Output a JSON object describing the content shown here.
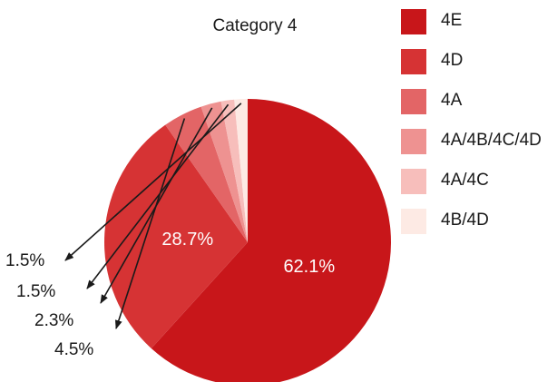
{
  "chart_data": {
    "type": "pie",
    "title": "Category 4",
    "slices": [
      {
        "label": "4E",
        "value": 62.1,
        "value_label": "62.1%",
        "color": "#c8161a"
      },
      {
        "label": "4D",
        "value": 28.7,
        "value_label": "28.7%",
        "color": "#d63334"
      },
      {
        "label": "4A",
        "value": 4.5,
        "value_label": "4.5%",
        "color": "#e36566"
      },
      {
        "label": "4A/4B/4C/4D",
        "value": 2.3,
        "value_label": "2.3%",
        "color": "#ee9291"
      },
      {
        "label": "4A/4C",
        "value": 1.5,
        "value_label": "1.5%",
        "color": "#f7bebb"
      },
      {
        "label": "4B/4D",
        "value": 1.5,
        "value_label": "1.5%",
        "color": "#fdeae4"
      }
    ],
    "legend_position": "right",
    "start_angle": "12 o'clock, clockwise",
    "labels_inside": [
      "4E",
      "4D"
    ],
    "labels_outside_with_arrows": [
      "4A",
      "4A/4B/4C/4D",
      "4A/4C",
      "4B/4D"
    ]
  }
}
